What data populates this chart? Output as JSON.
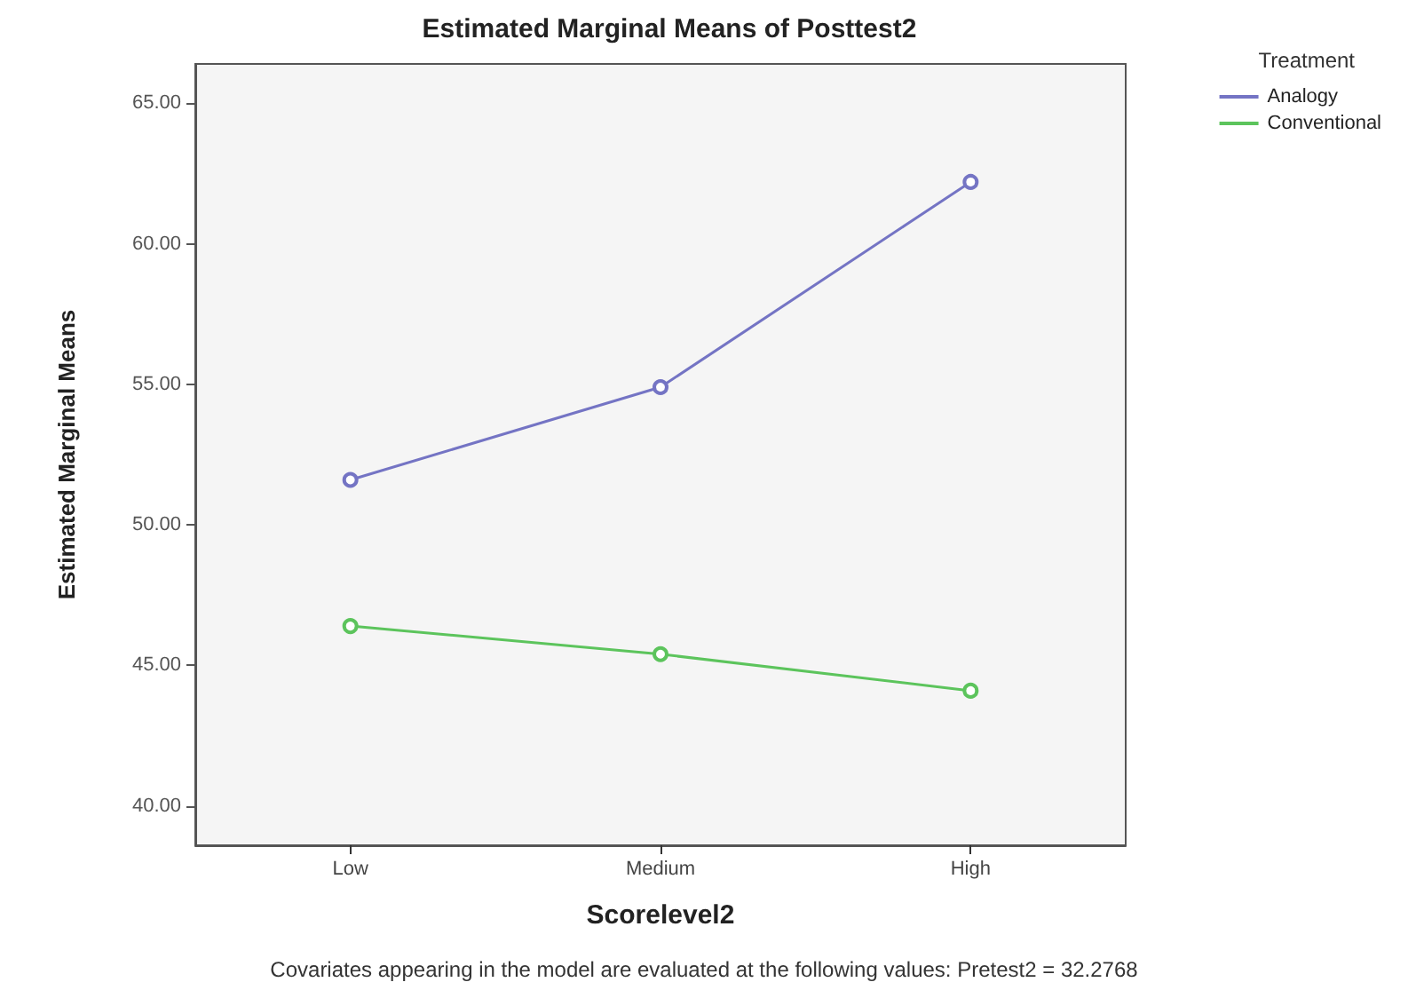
{
  "chart_data": {
    "type": "line",
    "title": "Estimated Marginal Means of Posttest2",
    "xlabel": "Scorelevel2",
    "ylabel": "Estimated Marginal Means",
    "legend_title": "Treatment",
    "categories": [
      "Low",
      "Medium",
      "High"
    ],
    "series": [
      {
        "name": "Analogy",
        "color": "#7474c4",
        "values": [
          51.6,
          54.9,
          62.2
        ]
      },
      {
        "name": "Conventional",
        "color": "#5cc45c",
        "values": [
          46.4,
          45.4,
          44.1
        ]
      }
    ],
    "ylim": [
      38.6,
      66.4
    ],
    "yticks": [
      {
        "value": 40,
        "label": "40.00"
      },
      {
        "value": 45,
        "label": "45.00"
      },
      {
        "value": 50,
        "label": "50.00"
      },
      {
        "value": 55,
        "label": "55.00"
      },
      {
        "value": 60,
        "label": "60.00"
      },
      {
        "value": 65,
        "label": "65.00"
      }
    ],
    "grid": false,
    "legend": "top right",
    "marker": "circle",
    "line_style": "solid",
    "annotations": [
      "Covariates appearing in the model are evaluated at the following values: Pretest2 = 32.2768"
    ]
  }
}
